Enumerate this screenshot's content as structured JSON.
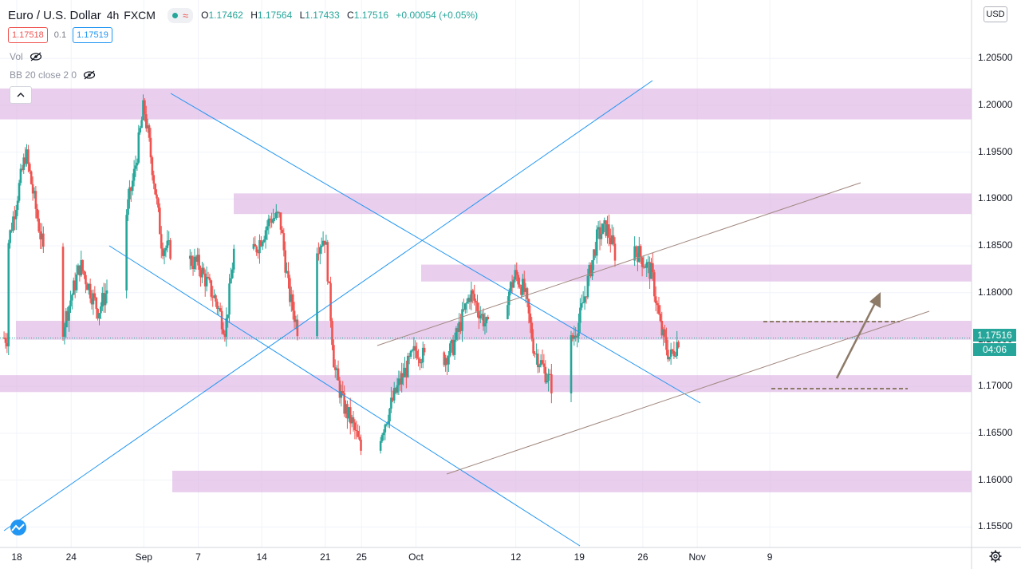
{
  "header": {
    "symbol": "Euro / U.S. Dollar",
    "interval": "4h",
    "exchange": "FXCM",
    "open_label": "O",
    "open": "1.17462",
    "high_label": "H",
    "high": "1.17564",
    "low_label": "L",
    "low": "1.17433",
    "close_label": "C",
    "close": "1.17516",
    "change": "+0.00054 (+0.05%)"
  },
  "trade": {
    "sell_price": "1.17518",
    "spread": "0.1",
    "buy_price": "1.17519"
  },
  "indicators": [
    {
      "label": "Vol"
    },
    {
      "label": "BB 20 close 2 0"
    }
  ],
  "price_axis": {
    "currency": "USD",
    "ticks": [
      "1.20500",
      "1.20000",
      "1.19500",
      "1.19000",
      "1.18500",
      "1.18000",
      "1.17500",
      "1.17000",
      "1.16500",
      "1.16000",
      "1.15500"
    ],
    "last_price": "1.17516",
    "countdown": "04:06"
  },
  "time_axis": {
    "ticks": [
      "18",
      "24",
      "Sep",
      "7",
      "14",
      "21",
      "25",
      "Oct",
      "12",
      "19",
      "26",
      "Nov",
      "9"
    ]
  },
  "colors": {
    "up": "#26a69a",
    "down": "#ef5350",
    "zone": "#e1bee7",
    "trend": "#2196f3",
    "channel": "#a1887f",
    "arrow": "#8d7b68"
  },
  "chart_data": {
    "type": "candlestick",
    "title": "Euro / U.S. Dollar, 4h, FXCM",
    "ylim": [
      1.1515,
      1.2095
    ],
    "path_points": [
      [
        "Aug 17",
        1.185
      ],
      [
        "Aug 19",
        1.195
      ],
      [
        "Aug 21",
        1.184
      ],
      [
        "Aug 23",
        1.176
      ],
      [
        "Aug 25",
        1.183
      ],
      [
        "Aug 27",
        1.178
      ],
      [
        "Aug 29",
        1.183
      ],
      [
        "Aug 31",
        1.193
      ],
      [
        "Sep 1",
        1.2
      ],
      [
        "Sep 2",
        1.193
      ],
      [
        "Sep 3",
        1.185
      ],
      [
        "Sep 7",
        1.183
      ],
      [
        "Sep 9",
        1.179
      ],
      [
        "Sep 10",
        1.176
      ],
      [
        "Sep 11",
        1.185
      ],
      [
        "Sep 13",
        1.184
      ],
      [
        "Sep 15",
        1.188
      ],
      [
        "Sep 16",
        1.188
      ],
      [
        "Sep 17",
        1.18
      ],
      [
        "Sep 18",
        1.176
      ],
      [
        "Sep 19",
        1.184
      ],
      [
        "Sep 21",
        1.186
      ],
      [
        "Sep 22",
        1.172
      ],
      [
        "Sep 23",
        1.168
      ],
      [
        "Sep 24",
        1.166
      ],
      [
        "Sep 25",
        1.163
      ],
      [
        "Sep 26",
        1.162
      ],
      [
        "Sep 29",
        1.17
      ],
      [
        "Oct 1",
        1.174
      ],
      [
        "Oct 3",
        1.172
      ],
      [
        "Oct 5",
        1.174
      ],
      [
        "Oct 7",
        1.18
      ],
      [
        "Oct 9",
        1.176
      ],
      [
        "Oct 10",
        1.177
      ],
      [
        "Oct 12",
        1.182
      ],
      [
        "Oct 13",
        1.18
      ],
      [
        "Oct 14",
        1.174
      ],
      [
        "Oct 16",
        1.17
      ],
      [
        "Oct 17",
        1.172
      ],
      [
        "Oct 19",
        1.177
      ],
      [
        "Oct 21",
        1.186
      ],
      [
        "Oct 22",
        1.187
      ],
      [
        "Oct 23",
        1.184
      ],
      [
        "Oct 24",
        1.181
      ],
      [
        "Oct 25",
        1.185
      ],
      [
        "Oct 27",
        1.182
      ],
      [
        "Oct 28",
        1.176
      ],
      [
        "Oct 29",
        1.173
      ],
      [
        "Oct 30",
        1.1752
      ]
    ],
    "zones": [
      {
        "from": 1.1985,
        "to": 1.2018
      },
      {
        "from": 1.1884,
        "to": 1.1906
      },
      {
        "from": 1.1812,
        "to": 1.183
      },
      {
        "from": 1.175,
        "to": 1.177
      },
      {
        "from": 1.1694,
        "to": 1.1712
      },
      {
        "from": 1.1587,
        "to": 1.161
      }
    ]
  }
}
